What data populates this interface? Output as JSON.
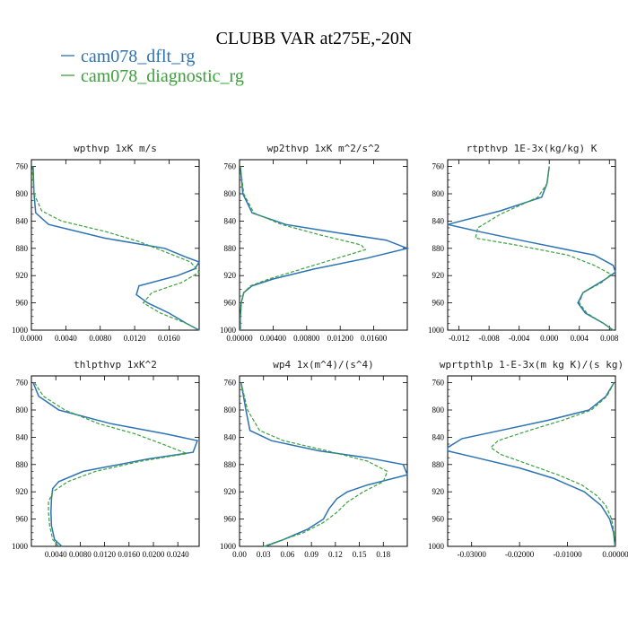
{
  "figure": {
    "title": "CLUBB VAR at275E,-20N",
    "legend": [
      {
        "label": "cam078_dflt_rg",
        "color": "#2c73b4",
        "dash": "solid"
      },
      {
        "label": "cam078_diagnostic_rg",
        "color": "#3aa13a",
        "dash": "dashed"
      }
    ]
  },
  "chart_data": [
    {
      "type": "line",
      "title": "wpthvp  1xK m/s",
      "xlim": [
        0.0,
        0.0195
      ],
      "ylim": [
        1000,
        750
      ],
      "yticks": [
        760,
        800,
        840,
        880,
        920,
        960,
        1000
      ],
      "xticks": [
        0.0,
        0.004,
        0.008,
        0.012,
        0.016
      ],
      "xtick_labels": [
        "0.0000",
        "0.0040",
        "0.0080",
        "0.0120",
        "0.0160"
      ],
      "series": [
        {
          "name": "cam078_dflt_rg",
          "y": [
            760,
            800,
            828,
            845,
            865,
            880,
            893,
            900,
            910,
            920,
            935,
            948,
            960,
            975,
            990,
            1000
          ],
          "x": [
            0.0002,
            0.0003,
            0.0005,
            0.002,
            0.0085,
            0.0155,
            0.018,
            0.0195,
            0.019,
            0.017,
            0.0125,
            0.0122,
            0.0135,
            0.016,
            0.018,
            0.0195
          ]
        },
        {
          "name": "cam078_diagnostic_rg",
          "y": [
            760,
            800,
            825,
            840,
            855,
            870,
            885,
            900,
            915,
            930,
            945,
            960,
            975,
            990,
            1000
          ],
          "x": [
            0.0001,
            0.0003,
            0.0012,
            0.0035,
            0.0085,
            0.0125,
            0.0155,
            0.0185,
            0.0195,
            0.0175,
            0.014,
            0.013,
            0.015,
            0.018,
            0.0195
          ]
        }
      ]
    },
    {
      "type": "line",
      "title": "wp2thvp  1xK m^2/s^2",
      "xlim": [
        0.0,
        0.02
      ],
      "ylim": [
        1000,
        750
      ],
      "yticks": [
        760,
        800,
        840,
        880,
        920,
        960,
        1000
      ],
      "xticks": [
        0.0,
        0.004,
        0.008,
        0.012,
        0.016
      ],
      "xtick_labels": [
        "0.00000",
        "0.00400",
        "0.00800",
        "0.01200",
        "0.01600"
      ],
      "series": [
        {
          "name": "cam078_dflt_rg",
          "y": [
            760,
            800,
            828,
            845,
            855,
            868,
            880,
            895,
            910,
            925,
            935,
            945,
            960,
            980,
            1000
          ],
          "x": [
            0.0001,
            0.0004,
            0.0015,
            0.0055,
            0.0105,
            0.0175,
            0.02,
            0.015,
            0.009,
            0.004,
            0.0015,
            0.0005,
            0.0002,
            0.0001,
            0.0001
          ]
        },
        {
          "name": "cam078_diagnostic_rg",
          "y": [
            760,
            800,
            828,
            845,
            860,
            875,
            882,
            895,
            910,
            925,
            935,
            945,
            960,
            980,
            1000
          ],
          "x": [
            0.0001,
            0.0005,
            0.0017,
            0.005,
            0.0095,
            0.0145,
            0.015,
            0.0115,
            0.0075,
            0.0035,
            0.0013,
            0.0005,
            0.0002,
            0.0001,
            0.0001
          ]
        }
      ]
    },
    {
      "type": "line",
      "title": "rtpthvp  1E-3x(kg/kg) K",
      "xlim": [
        -0.0135,
        0.0088
      ],
      "ylim": [
        1000,
        750
      ],
      "yticks": [
        760,
        800,
        840,
        880,
        920,
        960,
        1000
      ],
      "xticks": [
        -0.012,
        -0.008,
        -0.004,
        0.0,
        0.004,
        0.008
      ],
      "xtick_labels": [
        "-0.012",
        "-0.008",
        "-0.004",
        "0.000",
        "0.004",
        "0.008"
      ],
      "series": [
        {
          "name": "cam078_dflt_rg",
          "y": [
            760,
            785,
            805,
            825,
            845,
            855,
            870,
            890,
            905,
            915,
            925,
            945,
            960,
            975,
            990,
            1000
          ],
          "x": [
            0.0,
            -0.0003,
            -0.001,
            -0.0065,
            -0.0135,
            -0.0095,
            -0.003,
            0.006,
            0.0085,
            0.0088,
            0.0075,
            0.0045,
            0.0038,
            0.0048,
            0.0072,
            0.0085
          ]
        },
        {
          "name": "cam078_diagnostic_rg",
          "y": [
            760,
            785,
            805,
            830,
            850,
            865,
            875,
            890,
            905,
            918,
            930,
            945,
            960,
            975,
            990,
            1000
          ],
          "x": [
            0.0,
            -0.0003,
            -0.0015,
            -0.0065,
            -0.0095,
            -0.0098,
            -0.0045,
            0.0025,
            0.006,
            0.0082,
            0.007,
            0.0045,
            0.004,
            0.005,
            0.0072,
            0.0085
          ]
        }
      ]
    },
    {
      "type": "line",
      "title": "thlpthvp  1xK^2",
      "xlim": [
        0.0,
        0.0275
      ],
      "ylim": [
        1000,
        750
      ],
      "yticks": [
        760,
        800,
        840,
        880,
        920,
        960,
        1000
      ],
      "xticks": [
        0.004,
        0.008,
        0.012,
        0.016,
        0.02,
        0.024
      ],
      "xtick_labels": [
        "0.0040",
        "0.0080",
        "0.0120",
        "0.0160",
        "0.0200",
        "0.0240"
      ],
      "series": [
        {
          "name": "cam078_dflt_rg",
          "y": [
            760,
            780,
            800,
            820,
            835,
            845,
            862,
            872,
            890,
            905,
            915,
            930,
            950,
            970,
            990,
            1000
          ],
          "x": [
            0.0003,
            0.0012,
            0.0045,
            0.013,
            0.022,
            0.0272,
            0.0265,
            0.019,
            0.0085,
            0.0045,
            0.0035,
            0.0033,
            0.0032,
            0.0033,
            0.0038,
            0.005
          ]
        },
        {
          "name": "cam078_diagnostic_rg",
          "y": [
            760,
            780,
            800,
            820,
            835,
            850,
            864,
            875,
            890,
            905,
            920,
            935,
            950,
            970,
            990,
            1000
          ],
          "x": [
            0.0005,
            0.002,
            0.0055,
            0.011,
            0.017,
            0.0215,
            0.0255,
            0.018,
            0.0105,
            0.006,
            0.0035,
            0.0028,
            0.0028,
            0.003,
            0.0035,
            0.0045
          ]
        }
      ]
    },
    {
      "type": "line",
      "title": "wp4  1x(m^4)/(s^4)",
      "xlim": [
        0.0,
        0.21
      ],
      "ylim": [
        1000,
        750
      ],
      "yticks": [
        760,
        800,
        840,
        880,
        920,
        960,
        1000
      ],
      "xticks": [
        0.0,
        0.03,
        0.06,
        0.09,
        0.12,
        0.15,
        0.18
      ],
      "xtick_labels": [
        "0.00",
        "0.03",
        "0.06",
        "0.09",
        "0.12",
        "0.15",
        "0.18"
      ],
      "series": [
        {
          "name": "cam078_dflt_rg",
          "y": [
            760,
            800,
            830,
            845,
            860,
            870,
            880,
            895,
            910,
            920,
            930,
            945,
            960,
            975,
            990,
            1000
          ],
          "x": [
            0.002,
            0.008,
            0.013,
            0.04,
            0.1,
            0.16,
            0.205,
            0.21,
            0.16,
            0.135,
            0.122,
            0.112,
            0.105,
            0.085,
            0.055,
            0.032
          ]
        },
        {
          "name": "cam078_diagnostic_rg",
          "y": [
            760,
            800,
            830,
            845,
            860,
            875,
            890,
            905,
            920,
            935,
            950,
            965,
            980,
            990,
            1000
          ],
          "x": [
            0.002,
            0.01,
            0.025,
            0.055,
            0.11,
            0.16,
            0.185,
            0.18,
            0.155,
            0.135,
            0.122,
            0.105,
            0.08,
            0.055,
            0.03
          ]
        }
      ]
    },
    {
      "type": "line",
      "title": "wprtpthlp  1-E-3x(m kg K)/(s kg)",
      "xlim": [
        -0.035,
        0.0
      ],
      "ylim": [
        1000,
        750
      ],
      "yticks": [
        760,
        800,
        840,
        880,
        920,
        960,
        1000
      ],
      "xticks": [
        -0.03,
        -0.02,
        -0.01,
        0.0
      ],
      "xtick_labels": [
        "-0.03000",
        "-0.02000",
        "-0.01000",
        "0.00000"
      ],
      "series": [
        {
          "name": "cam078_dflt_rg",
          "y": [
            760,
            780,
            800,
            815,
            830,
            842,
            855,
            860,
            870,
            885,
            900,
            920,
            940,
            960,
            980,
            1000
          ],
          "x": [
            -0.0003,
            -0.002,
            -0.0055,
            -0.014,
            -0.024,
            -0.032,
            -0.035,
            -0.035,
            -0.029,
            -0.02,
            -0.013,
            -0.0065,
            -0.003,
            -0.0012,
            -0.0004,
            -0.0001
          ]
        },
        {
          "name": "cam078_diagnostic_rg",
          "y": [
            760,
            780,
            800,
            815,
            830,
            845,
            855,
            865,
            880,
            895,
            910,
            925,
            940,
            960,
            980,
            1000
          ],
          "x": [
            -0.0003,
            -0.0018,
            -0.005,
            -0.011,
            -0.018,
            -0.0245,
            -0.026,
            -0.024,
            -0.018,
            -0.012,
            -0.007,
            -0.004,
            -0.002,
            -0.0008,
            -0.0003,
            -0.0001
          ]
        }
      ]
    }
  ]
}
